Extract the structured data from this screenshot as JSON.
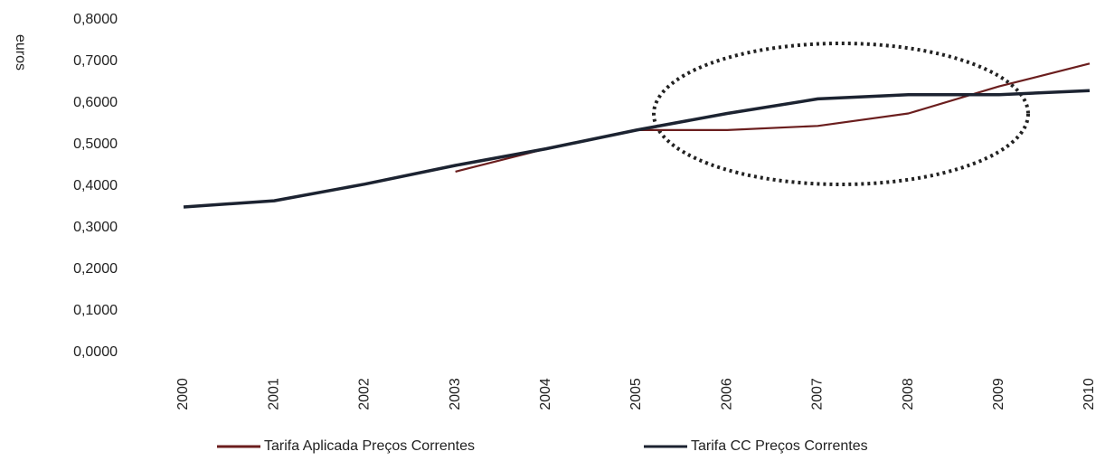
{
  "chart_data": {
    "type": "line",
    "ylabel": "euros",
    "categories": [
      "2000",
      "2001",
      "2002",
      "2003",
      "2004",
      "2005",
      "2006",
      "2007",
      "2008",
      "2009",
      "2010"
    ],
    "series": [
      {
        "name": "Tarifa Aplicada Preços Correntes",
        "color": "#6b1e1e",
        "values": [
          null,
          null,
          null,
          0.435,
          0.49,
          0.535,
          0.535,
          0.545,
          0.575,
          0.64,
          0.695
        ]
      },
      {
        "name": "Tarifa CC Preços Correntes",
        "color": "#1c2331",
        "values": [
          0.35,
          0.365,
          0.405,
          0.45,
          0.49,
          0.535,
          0.575,
          0.61,
          0.62,
          0.62,
          0.63
        ]
      }
    ],
    "ylim": [
      0,
      0.8
    ],
    "yticks": [
      {
        "value": 0,
        "label": "0,0000"
      },
      {
        "value": 0.1,
        "label": "0,1000"
      },
      {
        "value": 0.2,
        "label": "0,2000"
      },
      {
        "value": 0.3,
        "label": "0,3000"
      },
      {
        "value": 0.4,
        "label": "0,4000"
      },
      {
        "value": 0.5,
        "label": "0,5000"
      },
      {
        "value": 0.6,
        "label": "0,6000"
      },
      {
        "value": 0.7,
        "label": "0,7000"
      },
      {
        "value": 0.8,
        "label": "0,8000"
      }
    ],
    "grid": false
  }
}
